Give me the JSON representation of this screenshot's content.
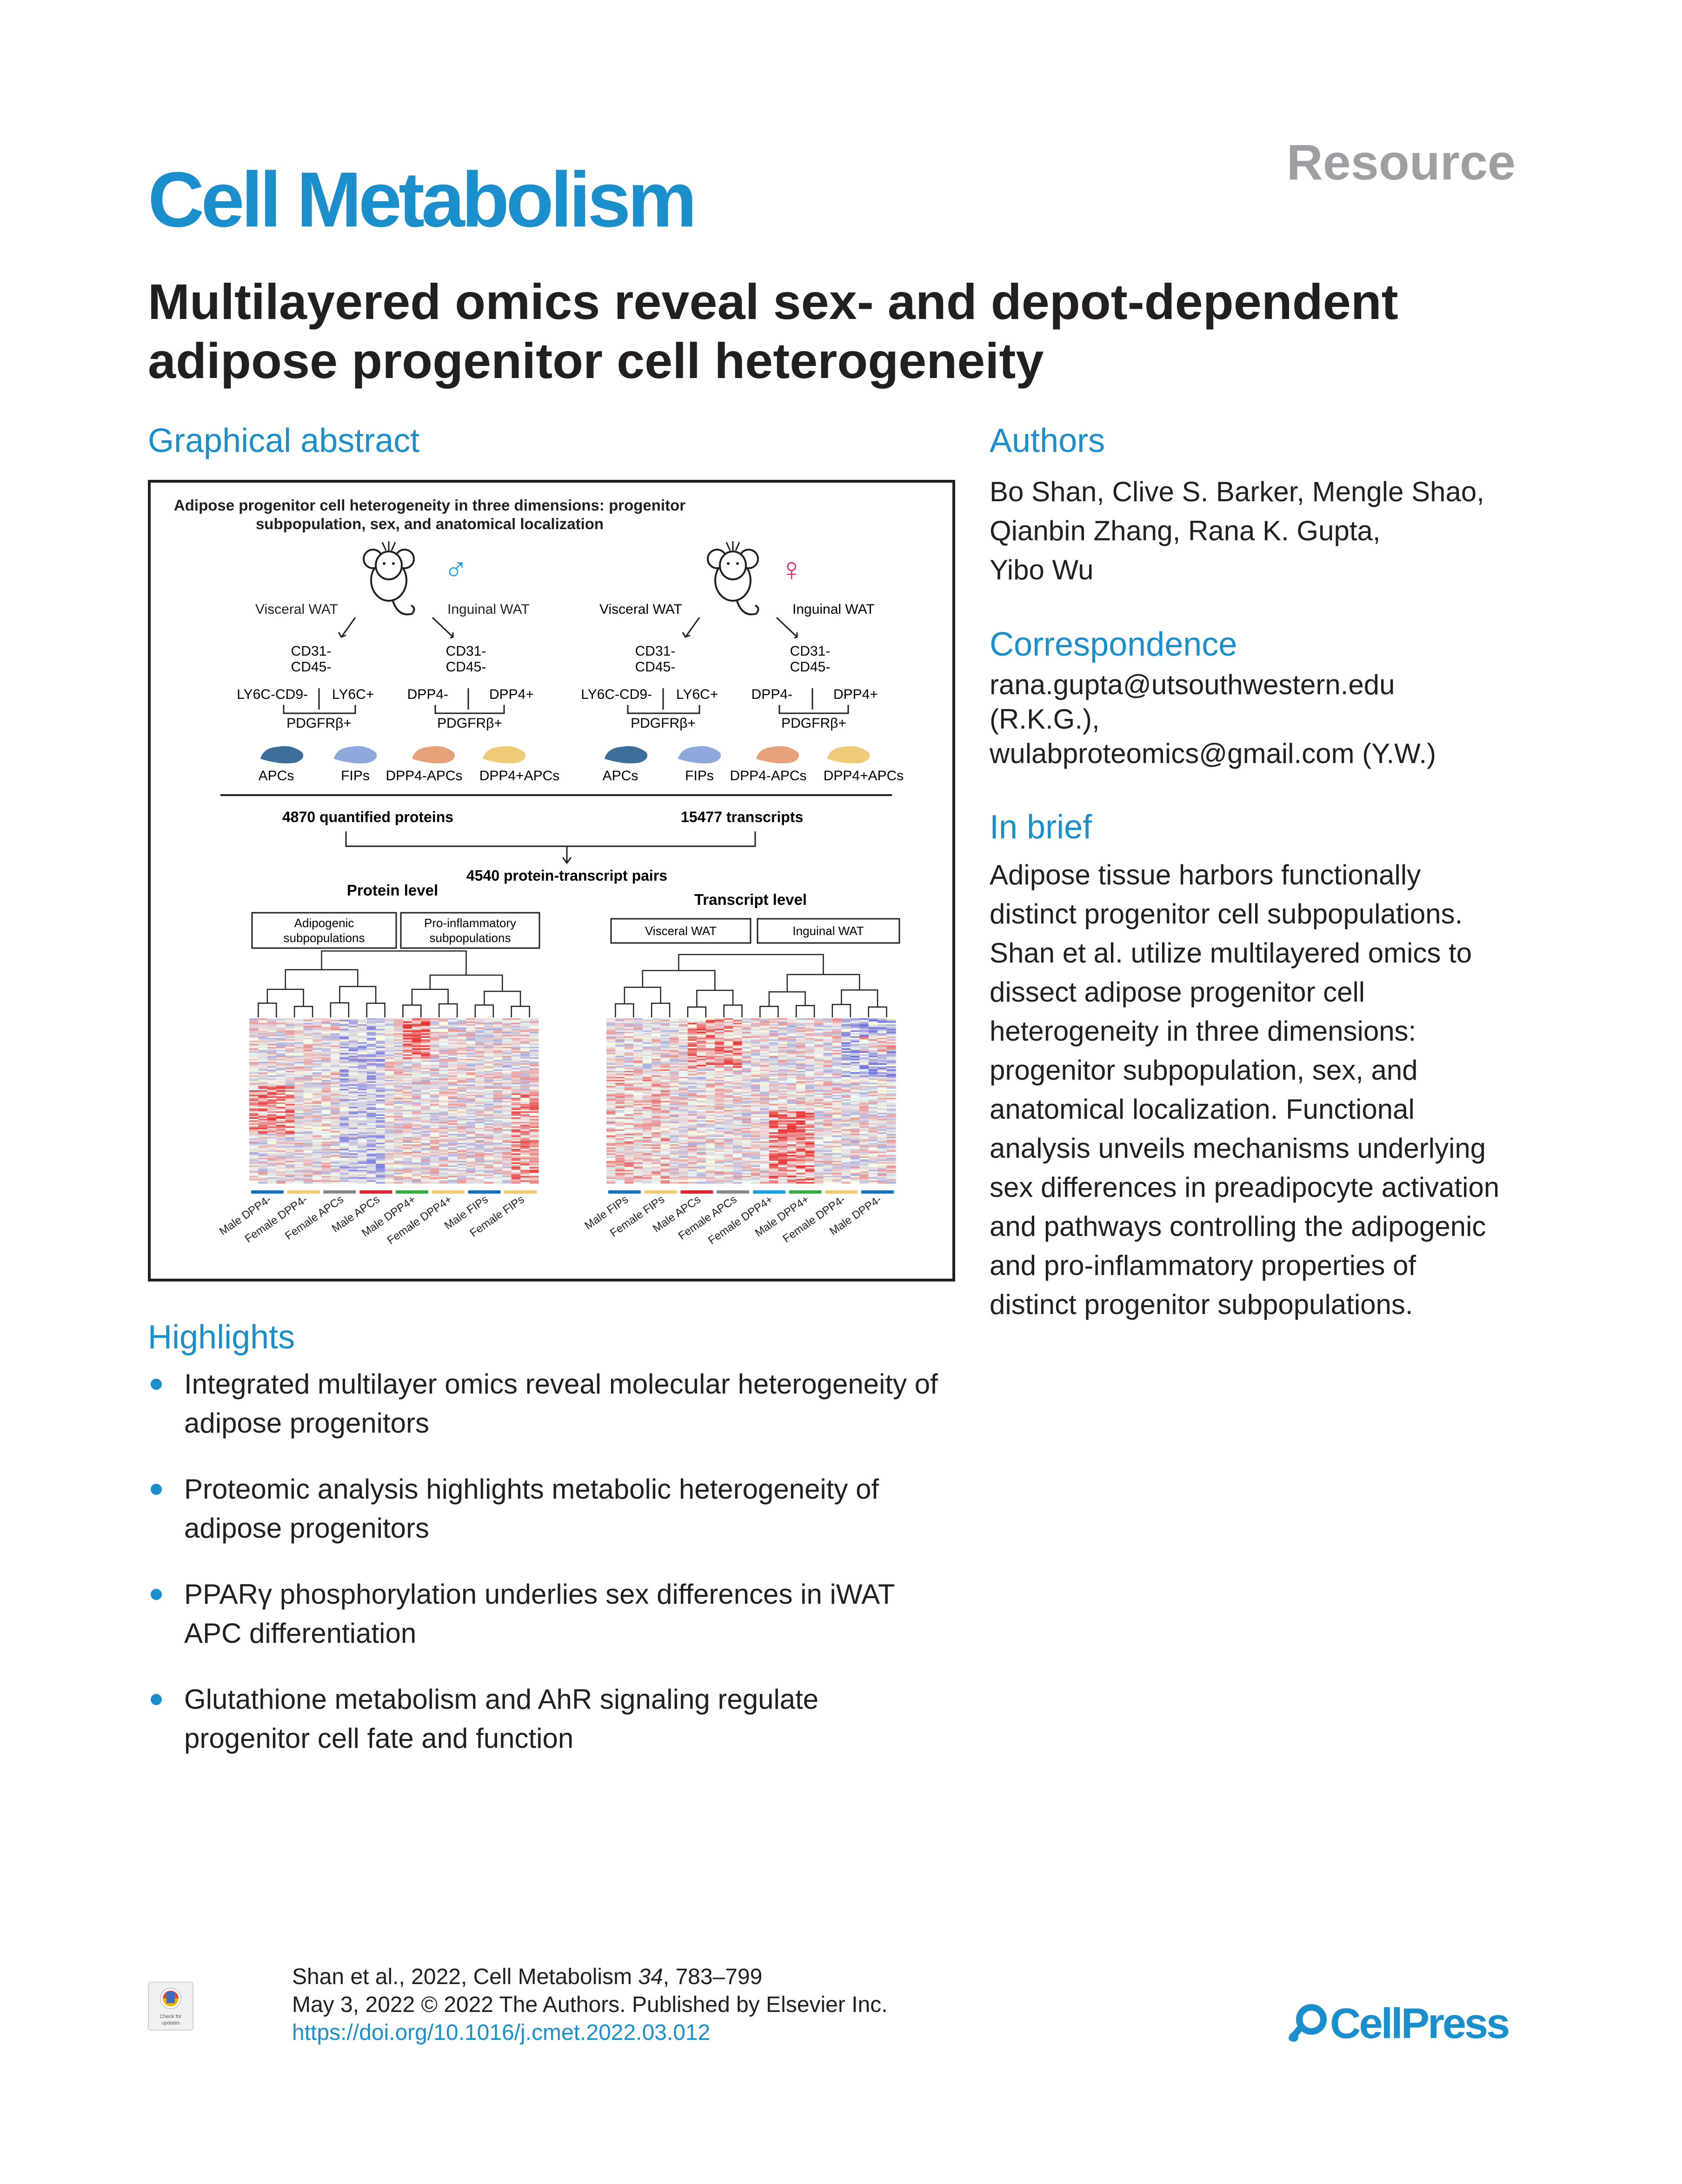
{
  "header": {
    "journal": "Cell Metabolism",
    "article_type": "Resource",
    "title_line1": "Multilayered omics reveal sex- and depot-dependent",
    "title_line2": "adipose progenitor cell heterogeneity"
  },
  "graphical_abstract": {
    "heading": "Graphical abstract",
    "title_line1": "Adipose progenitor cell heterogeneity in three dimensions: progenitor",
    "title_line2": "subpopulation, sex, and anatomical localization",
    "male_symbol": "♂",
    "female_symbol": "♀",
    "visceral_wat": "Visceral WAT",
    "inguinal_wat": "Inguinal WAT",
    "cd31": "CD31-",
    "cd45": "CD45-",
    "ly6c_cd9": "LY6C-CD9-",
    "ly6c_pos": "LY6C+",
    "dpp4_neg": "DPP4-",
    "dpp4_pos": "DPP4+",
    "pdgfrb": "PDGFRβ+",
    "apcs": "APCs",
    "fips": "FIPs",
    "dpp4_neg_apcs": "DPP4-APCs",
    "dpp4_pos_apcs": "DPP4+APCs",
    "proteins": "4870 quantified proteins",
    "transcripts": "15477 transcripts",
    "pairs": "4540 protein-transcript pairs",
    "protein_level": "Protein level",
    "transcript_level": "Transcript level",
    "adipogenic_l1": "Adipogenic",
    "adipogenic_l2": "subpopulations",
    "proinflam_l1": "Pro-inflammatory",
    "proinflam_l2": "subpopulations",
    "visceral_box": "Visceral WAT",
    "inguinal_box": "Inguinal WAT",
    "protein_samples": [
      "Male DPP4-",
      "Female DPP4-",
      "Female APCs",
      "Male APCs",
      "Male DPP4+",
      "Female DPP4+",
      "Male FIPs",
      "Female FIPs"
    ],
    "transcript_samples": [
      "Male FIPs",
      "Female FIPs",
      "Male APCs",
      "Female APCs",
      "Female DPP4+",
      "Male DPP4+",
      "Female DPP4-",
      "Male DPP4-"
    ],
    "colors": {
      "apc": "#3d6f9a",
      "fip": "#8fa8dc",
      "dpp4_neg": "#e8a27a",
      "dpp4_pos": "#f0cb77",
      "male": "#1a9fe0",
      "female": "#e0247a"
    }
  },
  "authors": {
    "heading": "Authors",
    "line1": "Bo Shan, Clive S. Barker, Mengle Shao,",
    "line2": "Qianbin Zhang, Rana K. Gupta,",
    "line3": "Yibo Wu"
  },
  "correspondence": {
    "heading": "Correspondence",
    "line1": "rana.gupta@utsouthwestern.edu",
    "line2": "(R.K.G.),",
    "line3": "wulabproteomics@gmail.com (Y.W.)"
  },
  "in_brief": {
    "heading": "In brief",
    "lines": [
      "Adipose tissue harbors functionally",
      "distinct progenitor cell subpopulations.",
      "Shan et al. utilize multilayered omics to",
      "dissect adipose progenitor cell",
      "heterogeneity in three dimensions:",
      "progenitor subpopulation, sex, and",
      "anatomical localization. Functional",
      "analysis unveils mechanisms underlying",
      "sex differences in preadipocyte activation",
      "and pathways controlling the adipogenic",
      "and pro-inflammatory properties of",
      "distinct progenitor subpopulations."
    ]
  },
  "highlights": {
    "heading": "Highlights",
    "items": [
      {
        "line1": "Integrated multilayer omics reveal molecular heterogeneity of",
        "line2": "adipose progenitors"
      },
      {
        "line1": "Proteomic analysis highlights metabolic heterogeneity of",
        "line2": "adipose progenitors"
      },
      {
        "line1": "PPARγ phosphorylation underlies sex differences in iWAT",
        "line2": "APC differentiation"
      },
      {
        "line1": "Glutathione metabolism and AhR signaling regulate",
        "line2": "progenitor cell fate and function"
      }
    ]
  },
  "footer": {
    "citation_pre": "Shan et al., 2022, Cell Metabolism ",
    "volume": "34",
    "pages": ", 783–799",
    "date_line": "May 3, 2022 © 2022 The Authors. Published by Elsevier Inc.",
    "doi": "https://doi.org/10.1016/j.cmet.2022.03.012",
    "check_updates": "Check for updates",
    "publisher": "CellPress"
  }
}
